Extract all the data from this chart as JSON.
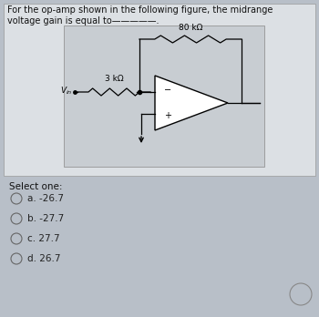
{
  "title_line1": "For the op-amp shown in the following figure, the midrange",
  "title_line2": "voltage gain is equal to—————.",
  "rf_label": "80 kΩ",
  "rin_label": "3 kΩ",
  "options": [
    "a. -26.7",
    "b. -27.7",
    "c. 27.7",
    "d. 26.7"
  ],
  "select_one": "Select one:",
  "bg_color": "#b8bfc8",
  "panel_bg": "#dce0e4",
  "circuit_bg": "#d0d4d8",
  "text_color": "#111111",
  "option_text_color": "#222222",
  "title_fontsize": 7.0,
  "option_fontsize": 7.5,
  "select_fontsize": 7.5
}
